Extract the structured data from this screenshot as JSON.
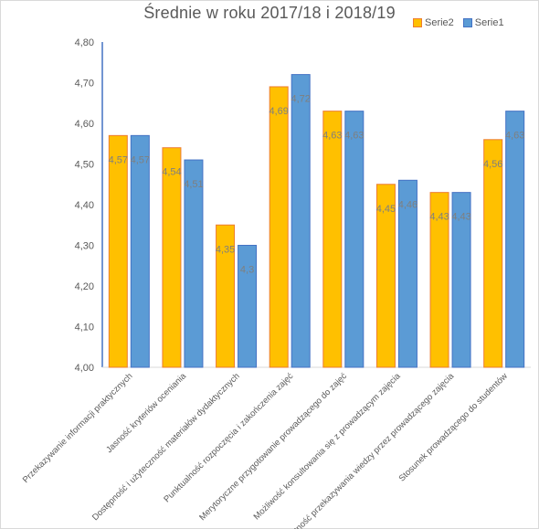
{
  "chart_data": {
    "type": "bar",
    "title": "Średnie  w roku 2017/18 i 2018/19",
    "categories": [
      "Przekazywanie informacji praktycznych",
      "Jasność kryteriów oceniania",
      "Dostępność i użyteczność materiałów dydaktycznych",
      "Punktualność rozpoczęcia i zakończenia zajęć",
      "Merytoryczne przygotowanie prowadzącego do zajęć",
      "Możliwość konsultowania się z prowadzącym zajęcia",
      "Umiejętność przekazywania wiedzy przez prowadzącego zajęcia",
      "Stosunek prowadzącego do studentów"
    ],
    "series": [
      {
        "name": "Serie2",
        "color": "#FFC000",
        "border": "#ED7D31",
        "values": [
          4.57,
          4.54,
          4.35,
          4.69,
          4.63,
          4.45,
          4.43,
          4.56
        ],
        "labels": [
          "4,57",
          "4,54",
          "4,35",
          "4,69",
          "4,63",
          "4,45",
          "4,43",
          "4,56"
        ]
      },
      {
        "name": "Serie1",
        "color": "#5B9BD5",
        "border": "#4472C4",
        "values": [
          4.57,
          4.51,
          4.3,
          4.72,
          4.63,
          4.46,
          4.43,
          4.63
        ],
        "labels": [
          "4,57",
          "4,51",
          "4,3",
          "4,72",
          "4,63",
          "4,46",
          "4,43",
          "4,63"
        ]
      }
    ],
    "ylim": [
      4.0,
      4.8
    ],
    "yticks": [
      "4,00",
      "4,10",
      "4,20",
      "4,30",
      "4,40",
      "4,50",
      "4,60",
      "4,70",
      "4,80"
    ],
    "grid": false,
    "legend_position": "top-right",
    "data_label_color": "#7F7F7F"
  },
  "legend": {
    "items": [
      "Serie2",
      "Serie1"
    ]
  }
}
